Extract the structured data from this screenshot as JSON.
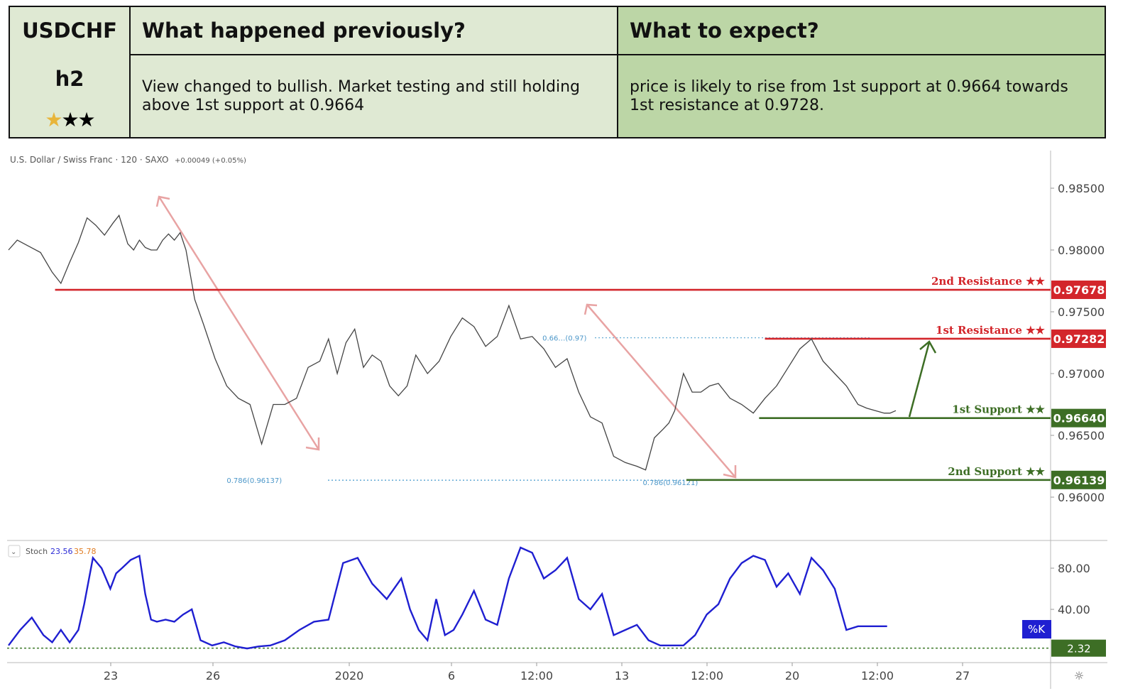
{
  "header": {
    "symbol": "USDCHF",
    "timeframe": "h2",
    "star_rating": {
      "filled": 1,
      "total": 3,
      "filled_color": "#e8b53a",
      "empty_color": "#000000"
    },
    "previous_title": "What happened previously?",
    "previous_text": "View changed to bullish. Market testing and still holding above 1st support at 0.9664",
    "expect_title": "What to expect?",
    "expect_text": "price is likely to rise from 1st support at 0.9664 towards 1st resistance at 0.9728."
  },
  "chart_data": {
    "type": "line",
    "instrument": "U.S. Dollar / Swiss Franc · 120 · SAXO",
    "change": "+0.00049 (+0.05%)",
    "x_ticks": [
      "23",
      "26",
      "2020",
      "6",
      "12:00",
      "13",
      "12:00",
      "20",
      "12:00",
      "27"
    ],
    "y_ticks": [
      "0.98500",
      "0.98000",
      "0.97500",
      "0.97000",
      "0.96500",
      "0.96000"
    ],
    "y_tick_values": [
      0.985,
      0.98,
      0.975,
      0.97,
      0.965,
      0.96
    ],
    "ylim": [
      0.9565,
      0.9878
    ],
    "price_series": {
      "name": "",
      "t": [
        0,
        3,
        7,
        11,
        15,
        18,
        21,
        24,
        27,
        30,
        33,
        36,
        38,
        41,
        43,
        45,
        47,
        49,
        51,
        53,
        55,
        57,
        59,
        61,
        64,
        67,
        71,
        75,
        79,
        83,
        87,
        91,
        95,
        99,
        103,
        107,
        110,
        113,
        116,
        119,
        122,
        125,
        128,
        131,
        134,
        137,
        140,
        144,
        148,
        152,
        156,
        160,
        164,
        168,
        172,
        176,
        180,
        184,
        188,
        192,
        196,
        200,
        204,
        208,
        212,
        216,
        219,
        222,
        225,
        227,
        229,
        232,
        235,
        238,
        241,
        244,
        248,
        252,
        256,
        260,
        264,
        268,
        272,
        276,
        280,
        284,
        288,
        292,
        295,
        298,
        301,
        303,
        305
      ],
      "values": [
        0.98,
        0.9808,
        0.9803,
        0.9798,
        0.9782,
        0.9773,
        0.979,
        0.9806,
        0.9826,
        0.982,
        0.9812,
        0.9822,
        0.9828,
        0.9805,
        0.98,
        0.9808,
        0.9802,
        0.98,
        0.98,
        0.9808,
        0.9813,
        0.9808,
        0.9814,
        0.98,
        0.976,
        0.974,
        0.9712,
        0.969,
        0.968,
        0.9675,
        0.9643,
        0.9675,
        0.9675,
        0.968,
        0.9705,
        0.971,
        0.9728,
        0.97,
        0.9725,
        0.9736,
        0.9705,
        0.9715,
        0.971,
        0.969,
        0.9682,
        0.969,
        0.9715,
        0.97,
        0.971,
        0.973,
        0.9745,
        0.9738,
        0.9722,
        0.973,
        0.9755,
        0.9728,
        0.973,
        0.972,
        0.9705,
        0.9712,
        0.9685,
        0.9665,
        0.966,
        0.9633,
        0.9628,
        0.9625,
        0.9622,
        0.9648,
        0.9655,
        0.966,
        0.967,
        0.97,
        0.9685,
        0.9685,
        0.969,
        0.9692,
        0.968,
        0.9675,
        0.9668,
        0.968,
        0.969,
        0.9705,
        0.972,
        0.9728,
        0.971,
        0.97,
        0.969,
        0.9675,
        0.9672,
        0.967,
        0.9668,
        0.9668,
        0.967
      ]
    },
    "levels": [
      {
        "label": "2nd Resistance ★★",
        "value": 0.97678,
        "tag": "0.97678",
        "color": "#d3262b",
        "start_t": 16
      },
      {
        "label": "1st Resistance ★★",
        "value": 0.97282,
        "tag": "0.97282",
        "color": "#d3262b",
        "start_t": 260
      },
      {
        "label": "1st Support ★★",
        "value": 0.9664,
        "tag": "0.96640",
        "color": "#3d6e25",
        "start_t": 258
      },
      {
        "label": "2nd Support ★★",
        "value": 0.96139,
        "tag": "0.96139",
        "color": "#3d6e25",
        "start_t": 233
      }
    ],
    "fib_labels": [
      {
        "text": "0.786(0.96137)",
        "value": 0.96137,
        "t": 75
      },
      {
        "text": "0.786(0.96121)",
        "value": 0.96121,
        "t": 218
      }
    ],
    "fib_mid_label": {
      "text": "0.66…(0.97)",
      "value": 0.9729,
      "t": 184
    },
    "stochastic": {
      "indicator": "Stoch",
      "k_value": "23.56",
      "d_value": "35.78",
      "k_tag": "%K",
      "level_tag": "2.32",
      "level": 2.32,
      "ylim": [
        0,
        100
      ],
      "y_ticks": [
        "80.00",
        "40.00"
      ],
      "y_tick_values": [
        80,
        40
      ],
      "series": {
        "name": "%K",
        "t": [
          0,
          4,
          8,
          12,
          15,
          18,
          21,
          24,
          26,
          29,
          32,
          35,
          37,
          39,
          42,
          45,
          47,
          49,
          51,
          54,
          57,
          60,
          63,
          66,
          70,
          74,
          78,
          82,
          86,
          90,
          95,
          100,
          105,
          110,
          115,
          120,
          125,
          130,
          135,
          138,
          141,
          144,
          147,
          150,
          153,
          156,
          160,
          164,
          168,
          172,
          176,
          180,
          184,
          188,
          192,
          196,
          200,
          204,
          208,
          212,
          216,
          220,
          224,
          228,
          232,
          236,
          240,
          244,
          248,
          252,
          256,
          260,
          264,
          268,
          272,
          276,
          280,
          284,
          288,
          292,
          296,
          300,
          302
        ],
        "values": [
          5,
          20,
          32,
          15,
          8,
          20,
          8,
          20,
          45,
          90,
          80,
          60,
          75,
          80,
          88,
          92,
          55,
          30,
          28,
          30,
          28,
          35,
          40,
          10,
          5,
          8,
          4,
          2,
          4,
          5,
          10,
          20,
          28,
          30,
          85,
          90,
          65,
          50,
          70,
          40,
          20,
          10,
          50,
          15,
          20,
          35,
          58,
          30,
          25,
          70,
          100,
          95,
          70,
          78,
          90,
          50,
          40,
          55,
          15,
          20,
          25,
          10,
          5,
          5,
          5,
          15,
          35,
          45,
          70,
          85,
          92,
          88,
          62,
          75,
          55,
          90,
          78,
          60,
          20,
          23.56,
          23.56,
          23.56,
          23.56
        ]
      }
    },
    "grid": false,
    "legend": "none"
  }
}
